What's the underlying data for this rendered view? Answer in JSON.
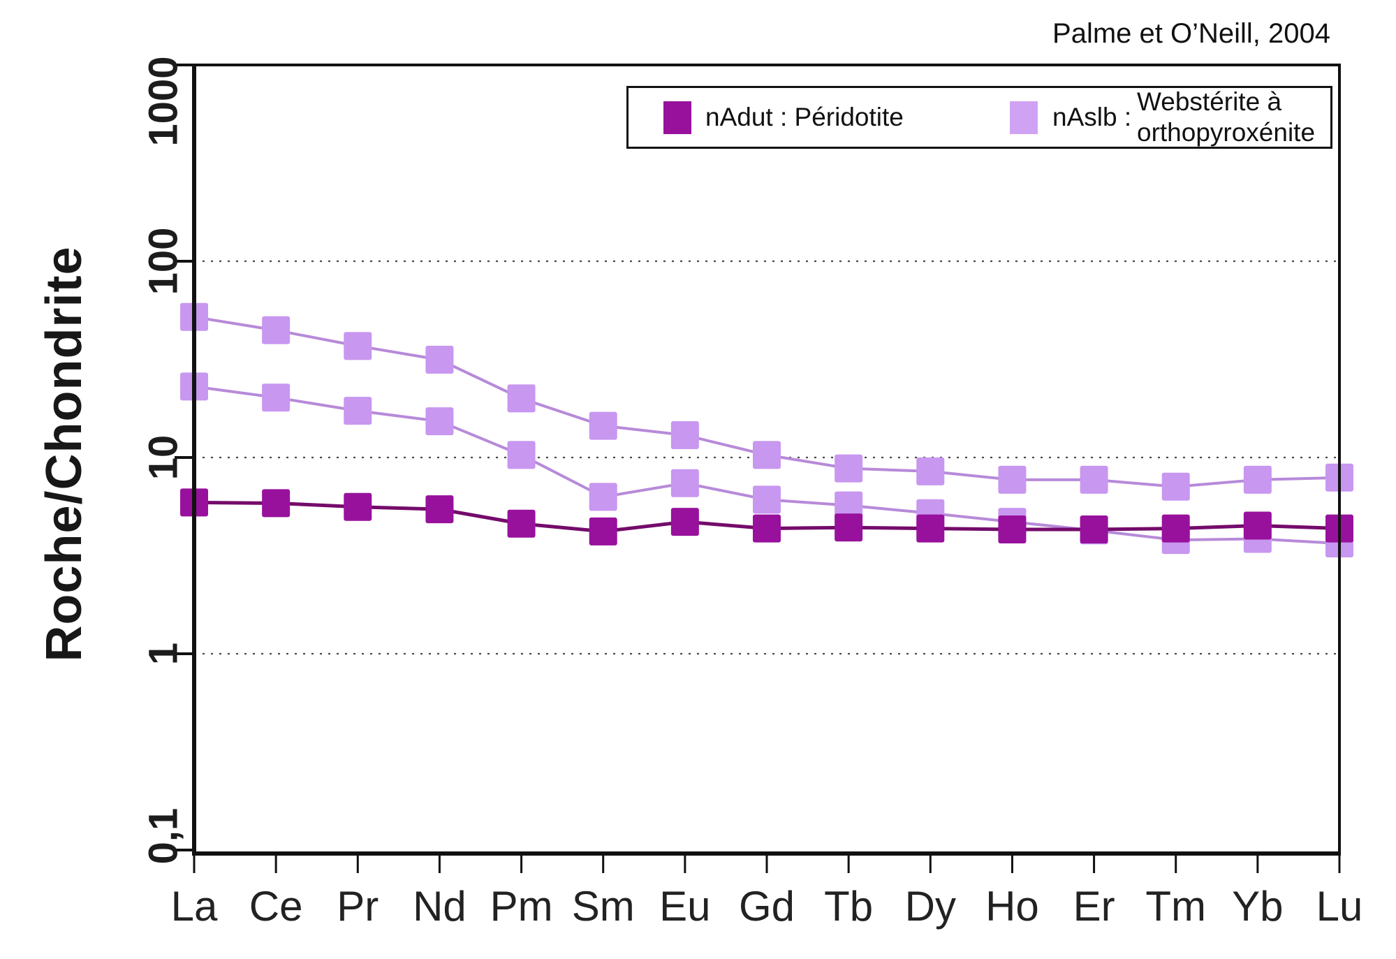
{
  "attribution": "Palme et O’Neill, 2004",
  "legend": {
    "items": [
      {
        "id": "nAdut",
        "label": "nAdut : Péridotite",
        "swatch_color": "#98119c"
      },
      {
        "id": "nAslb",
        "label_prefix": "nAslb :",
        "label_line1": "Webstérite à",
        "label_line2": "orthopyroxénite",
        "swatch_color": "#d0a2f4"
      }
    ]
  },
  "chart_data": {
    "type": "line",
    "title": "",
    "xlabel": "",
    "ylabel": "Roche/Chondrite",
    "y_scale": "log",
    "ylim": [
      0.1,
      1000
    ],
    "y_tick_labels": [
      "1000",
      "100",
      "10",
      "1",
      "0,1"
    ],
    "y_tick_values": [
      1000,
      100,
      10,
      1,
      0.1
    ],
    "gridline_values": [
      100,
      10,
      1
    ],
    "grid_style": "dotted horizontal lines at decades",
    "legend_position": "top inside frame",
    "categories": [
      "La",
      "Ce",
      "Pr",
      "Nd",
      "Pm",
      "Sm",
      "Eu",
      "Gd",
      "Tb",
      "Dy",
      "Ho",
      "Er",
      "Tm",
      "Yb",
      "Lu"
    ],
    "series": [
      {
        "name": "nAslb : Webstérite à orthopyroxénite",
        "group": "nAslb",
        "marker": "square",
        "marker_color": "#c897f0",
        "line_color": "#b78ad9",
        "values": [
          52,
          44.5,
          37,
          31.5,
          20,
          14.5,
          13,
          10.3,
          8.8,
          8.5,
          7.7,
          7.7,
          7.1,
          7.7,
          7.9
        ]
      },
      {
        "name": "nAslb : Webstérite à orthopyroxénite",
        "group": "nAslb",
        "marker": "square",
        "marker_color": "#c897f0",
        "line_color": "#b78ad9",
        "values": [
          23,
          20.2,
          17.3,
          15.3,
          10.3,
          6.3,
          7.4,
          6.1,
          5.7,
          5.2,
          4.7,
          4.25,
          3.8,
          3.85,
          3.65
        ]
      },
      {
        "name": "nAdut : Péridotite",
        "group": "nAdut",
        "marker": "square",
        "marker_color": "#98119c",
        "line_color": "#740b6b",
        "values": [
          5.9,
          5.85,
          5.6,
          5.45,
          4.6,
          4.2,
          4.7,
          4.35,
          4.4,
          4.35,
          4.3,
          4.3,
          4.35,
          4.5,
          4.35
        ]
      }
    ]
  }
}
